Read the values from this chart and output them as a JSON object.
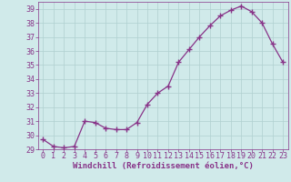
{
  "x": [
    0,
    1,
    2,
    3,
    4,
    5,
    6,
    7,
    8,
    9,
    10,
    11,
    12,
    13,
    14,
    15,
    16,
    17,
    18,
    19,
    20,
    21,
    22,
    23
  ],
  "y": [
    29.7,
    29.2,
    29.1,
    29.2,
    31.0,
    30.9,
    30.5,
    30.4,
    30.4,
    30.9,
    32.2,
    33.0,
    33.5,
    35.2,
    36.1,
    37.0,
    37.8,
    38.5,
    38.9,
    39.2,
    38.8,
    38.0,
    36.5,
    35.2
  ],
  "line_color": "#883388",
  "marker": "+",
  "bg_color": "#d0eaea",
  "grid_color": "#b0d0d0",
  "xlabel": "Windchill (Refroidissement éolien,°C)",
  "xlim": [
    -0.5,
    23.5
  ],
  "ylim": [
    29,
    39.5
  ],
  "yticks": [
    29,
    30,
    31,
    32,
    33,
    34,
    35,
    36,
    37,
    38,
    39
  ],
  "xticks": [
    0,
    1,
    2,
    3,
    4,
    5,
    6,
    7,
    8,
    9,
    10,
    11,
    12,
    13,
    14,
    15,
    16,
    17,
    18,
    19,
    20,
    21,
    22,
    23
  ],
  "tick_color": "#883388",
  "label_color": "#883388",
  "font_size_axis": 6.5,
  "font_size_tick": 6.0
}
